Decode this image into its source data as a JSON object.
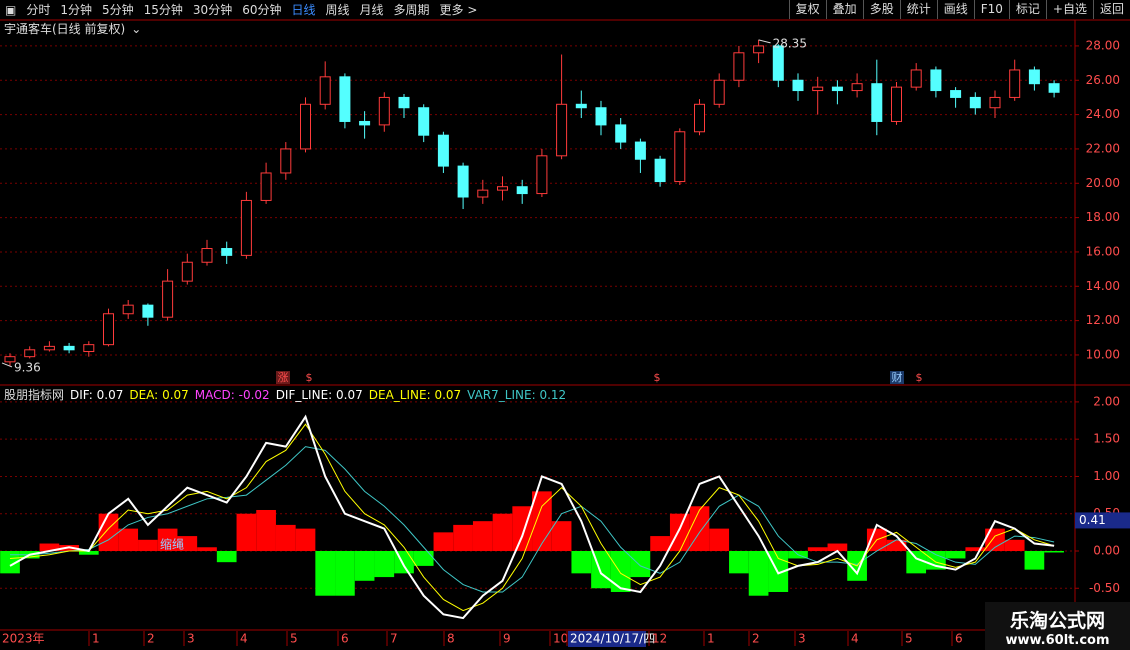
{
  "toolbar": {
    "periods": [
      "分时",
      "1分钟",
      "5分钟",
      "15分钟",
      "30分钟",
      "60分钟",
      "日线",
      "周线",
      "月线",
      "多周期",
      "更多 >"
    ],
    "active_period": 6,
    "tools": [
      "复权",
      "叠加",
      "多股",
      "统计",
      "画线",
      "F10",
      "标记",
      "+自选",
      "返回"
    ]
  },
  "chart_data": [
    {
      "type": "candlestick",
      "title": "宇通客车(日线 前复权)",
      "series": [
        {
          "up_color": "#ff3b3b",
          "down_color": "#54ffff",
          "open": [
            9.6,
            9.9,
            10.3,
            10.5,
            10.2,
            10.6,
            12.4,
            12.9,
            12.2,
            14.3,
            15.4,
            16.2,
            15.8,
            19.0,
            20.6,
            22.0,
            24.6,
            26.2,
            23.6,
            23.4,
            25.0,
            24.4,
            22.8,
            21.0,
            19.2,
            19.6,
            19.8,
            19.4,
            21.6,
            24.6,
            24.4,
            23.4,
            22.4,
            21.4,
            20.1,
            23.0,
            24.6,
            26.0,
            27.6,
            28.0,
            26.0,
            25.4,
            25.6,
            25.4,
            25.8,
            23.6,
            25.6,
            26.6,
            25.4,
            25.0,
            24.4,
            25.0,
            26.6,
            25.8
          ],
          "high": [
            10.1,
            10.5,
            10.8,
            10.7,
            10.8,
            12.7,
            13.2,
            13.0,
            15.0,
            15.9,
            16.7,
            16.6,
            19.5,
            21.2,
            22.4,
            25.0,
            27.1,
            26.4,
            24.2,
            25.3,
            25.2,
            24.6,
            23.0,
            21.2,
            20.2,
            20.4,
            20.2,
            22.0,
            27.5,
            25.4,
            24.8,
            23.8,
            22.6,
            21.6,
            23.2,
            24.9,
            26.4,
            28.0,
            28.35,
            28.1,
            26.4,
            26.2,
            26.0,
            26.4,
            27.2,
            25.9,
            27.0,
            26.8,
            25.6,
            25.3,
            25.4,
            27.2,
            26.8,
            26.0
          ],
          "low": [
            9.36,
            9.8,
            10.2,
            10.1,
            9.9,
            10.5,
            12.1,
            11.7,
            12.0,
            14.1,
            15.2,
            15.3,
            15.6,
            18.8,
            20.2,
            21.8,
            24.3,
            23.2,
            22.6,
            23.0,
            23.8,
            22.4,
            20.6,
            18.5,
            18.8,
            19.0,
            18.8,
            19.2,
            21.4,
            23.8,
            22.8,
            22.0,
            20.6,
            19.8,
            19.9,
            22.8,
            24.4,
            25.6,
            27.0,
            25.6,
            24.8,
            24.0,
            24.6,
            25.0,
            22.8,
            23.4,
            25.4,
            25.0,
            24.4,
            24.0,
            23.8,
            24.8,
            25.4,
            25.0
          ],
          "close": [
            9.9,
            10.3,
            10.5,
            10.3,
            10.6,
            12.4,
            12.9,
            12.2,
            14.3,
            15.4,
            16.2,
            15.8,
            19.0,
            20.6,
            22.0,
            24.6,
            26.2,
            23.6,
            23.4,
            25.0,
            24.4,
            22.8,
            21.0,
            19.2,
            19.6,
            19.8,
            19.4,
            21.6,
            24.6,
            24.4,
            23.4,
            22.4,
            21.4,
            20.1,
            23.0,
            24.6,
            26.0,
            27.6,
            28.0,
            26.0,
            25.4,
            25.6,
            25.4,
            25.8,
            23.6,
            25.6,
            26.6,
            25.4,
            25.0,
            24.4,
            25.0,
            26.6,
            25.8,
            25.3
          ]
        }
      ],
      "ylim": [
        8.25,
        29.51
      ],
      "yticks": [
        {
          "value": 10,
          "label": "10.00"
        },
        {
          "value": 12,
          "label": "12.00"
        },
        {
          "value": 14,
          "label": "14.00"
        },
        {
          "value": 16,
          "label": "16.00"
        },
        {
          "value": 18,
          "label": "18.00"
        },
        {
          "value": 20,
          "label": "20.00"
        },
        {
          "value": 22,
          "label": "22.00"
        },
        {
          "value": 24,
          "label": "24.00"
        },
        {
          "value": 26,
          "label": "26.00"
        },
        {
          "value": 28,
          "label": "28.00"
        }
      ],
      "grid": true,
      "max_label": 28.35,
      "min_label": 9.36,
      "events": [
        "涨",
        "$",
        "$",
        "财",
        "$"
      ]
    },
    {
      "type": "macd",
      "title": "股朋指标网",
      "readouts": [
        {
          "name": "DIF:",
          "value": 0.07,
          "color": "#ffffff"
        },
        {
          "name": "DEA:",
          "value": 0.07,
          "color": "#ffff00"
        },
        {
          "name": "MACD:",
          "value": -0.02,
          "color": "#ff44ff"
        },
        {
          "name": "DIF_LINE:",
          "value": 0.07,
          "color": "#ffffff"
        },
        {
          "name": "DEA_LINE:",
          "value": 0.07,
          "color": "#ffff00"
        },
        {
          "name": "VAR7_LINE:",
          "value": 0.12,
          "color": "#3fc6c6"
        }
      ],
      "histogram": {
        "up_color": "#ff0000",
        "down_color": "#00ff00",
        "values": [
          -0.3,
          -0.1,
          0.1,
          0.08,
          -0.05,
          0.5,
          0.3,
          0.15,
          0.3,
          0.2,
          0.05,
          -0.15,
          0.5,
          0.55,
          0.35,
          0.3,
          -0.6,
          -0.6,
          -0.4,
          -0.35,
          -0.3,
          -0.2,
          0.25,
          0.35,
          0.4,
          0.5,
          0.6,
          0.8,
          0.4,
          -0.3,
          -0.5,
          -0.55,
          -0.35,
          0.2,
          0.5,
          0.6,
          0.3,
          -0.3,
          -0.6,
          -0.55,
          -0.1,
          0.05,
          0.1,
          -0.4,
          0.3,
          0.15,
          -0.3,
          -0.25,
          -0.1,
          0.05,
          0.3,
          0.15,
          -0.25,
          -0.02
        ]
      },
      "series": [
        {
          "color": "#3fc6c6",
          "values": [
            -0.05,
            -0.05,
            -0.03,
            0,
            0.02,
            0.15,
            0.35,
            0.45,
            0.5,
            0.6,
            0.7,
            0.72,
            0.75,
            0.95,
            1.15,
            1.4,
            1.35,
            1.1,
            0.8,
            0.6,
            0.35,
            0.05,
            -0.25,
            -0.45,
            -0.55,
            -0.55,
            -0.35,
            0.1,
            0.5,
            0.6,
            0.4,
            0.05,
            -0.2,
            -0.3,
            -0.15,
            0.25,
            0.6,
            0.75,
            0.6,
            0.2,
            -0.05,
            -0.15,
            -0.15,
            -0.18,
            0,
            0.15,
            0.1,
            -0.05,
            -0.15,
            -0.18,
            0.05,
            0.2,
            0.18,
            0.12
          ]
        },
        {
          "color": "#ffff00",
          "values": [
            -0.1,
            -0.08,
            -0.05,
            0,
            0,
            0.3,
            0.55,
            0.5,
            0.55,
            0.75,
            0.8,
            0.7,
            0.85,
            1.2,
            1.35,
            1.7,
            1.3,
            0.8,
            0.5,
            0.35,
            0.05,
            -0.35,
            -0.65,
            -0.8,
            -0.7,
            -0.5,
            -0.1,
            0.6,
            0.85,
            0.6,
            0.1,
            -0.3,
            -0.45,
            -0.35,
            0,
            0.55,
            0.85,
            0.75,
            0.4,
            -0.1,
            -0.2,
            -0.18,
            -0.1,
            -0.2,
            0.15,
            0.25,
            0.05,
            -0.15,
            -0.22,
            -0.15,
            0.2,
            0.3,
            0.15,
            0.07
          ]
        },
        {
          "color": "#ffffff",
          "values": [
            -0.2,
            -0.05,
            0,
            0.05,
            0,
            0.5,
            0.7,
            0.35,
            0.6,
            0.85,
            0.75,
            0.65,
            1.0,
            1.45,
            1.4,
            1.8,
            1.0,
            0.5,
            0.4,
            0.3,
            -0.2,
            -0.6,
            -0.85,
            -0.9,
            -0.6,
            -0.4,
            0.2,
            1.0,
            0.9,
            0.4,
            -0.3,
            -0.5,
            -0.55,
            -0.2,
            0.3,
            0.9,
            1.0,
            0.6,
            0.2,
            -0.3,
            -0.2,
            -0.15,
            0,
            -0.3,
            0.35,
            0.2,
            -0.1,
            -0.2,
            -0.25,
            -0.1,
            0.4,
            0.3,
            0.1,
            0.07
          ]
        }
      ],
      "ylim": [
        -1.06,
        2.2
      ],
      "yticks": [
        {
          "value": -0.5,
          "label": "-0.50"
        },
        {
          "value": 0,
          "label": "0.00"
        },
        {
          "value": 0.5,
          "label": "0.50"
        },
        {
          "value": 1,
          "label": "1.00"
        },
        {
          "value": 1.5,
          "label": "1.50"
        },
        {
          "value": 2,
          "label": "2.00"
        }
      ],
      "grid": true,
      "cursor_value": 0.41,
      "annotation": "缩绳"
    }
  ],
  "time_axis": {
    "labels": [
      "2023年",
      "1",
      "2",
      "3",
      "4",
      "5",
      "6",
      "7",
      "8",
      "9",
      "10",
      "2024/10/17/四",
      "12",
      "1",
      "2",
      "3",
      "4",
      "5",
      "6"
    ],
    "highlight": 11
  },
  "watermark": {
    "name": "乐淘公式网",
    "url": "www.60lt.com"
  }
}
